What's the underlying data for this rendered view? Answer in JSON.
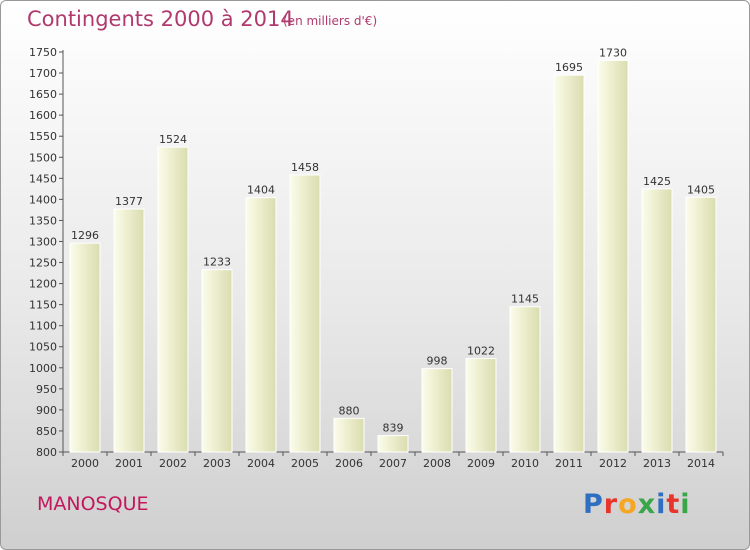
{
  "header": {
    "title": "Contingents 2000 à 2014",
    "subtitle": "(en milliers d'€)"
  },
  "footer": {
    "city": "MANOSQUE",
    "logo_text": "Proxiti"
  },
  "colors": {
    "title": "#b03a6e",
    "city": "#c2185b",
    "bar_light": "#fcfdea",
    "bar_dark": "#dadcae",
    "logo": [
      "#2e6fc2",
      "#e8352c",
      "#f5a623",
      "#3aa64a",
      "#2e6fc2",
      "#e8352c",
      "#3aa64a"
    ]
  },
  "chart_data": {
    "type": "bar",
    "title": "Contingents 2000 à 2014",
    "subtitle": "(en milliers d'€)",
    "categories": [
      "2000",
      "2001",
      "2002",
      "2003",
      "2004",
      "2005",
      "2006",
      "2007",
      "2008",
      "2009",
      "2010",
      "2011",
      "2012",
      "2013",
      "2014"
    ],
    "values": [
      1296,
      1377,
      1524,
      1233,
      1404,
      1458,
      880,
      839,
      998,
      1022,
      1145,
      1695,
      1730,
      1425,
      1405
    ],
    "ylim": [
      800,
      1750
    ],
    "yticks": [
      800,
      850,
      900,
      950,
      1000,
      1050,
      1100,
      1150,
      1200,
      1250,
      1300,
      1350,
      1400,
      1450,
      1500,
      1550,
      1600,
      1650,
      1700,
      1750
    ],
    "grid": false,
    "legend": "none"
  }
}
